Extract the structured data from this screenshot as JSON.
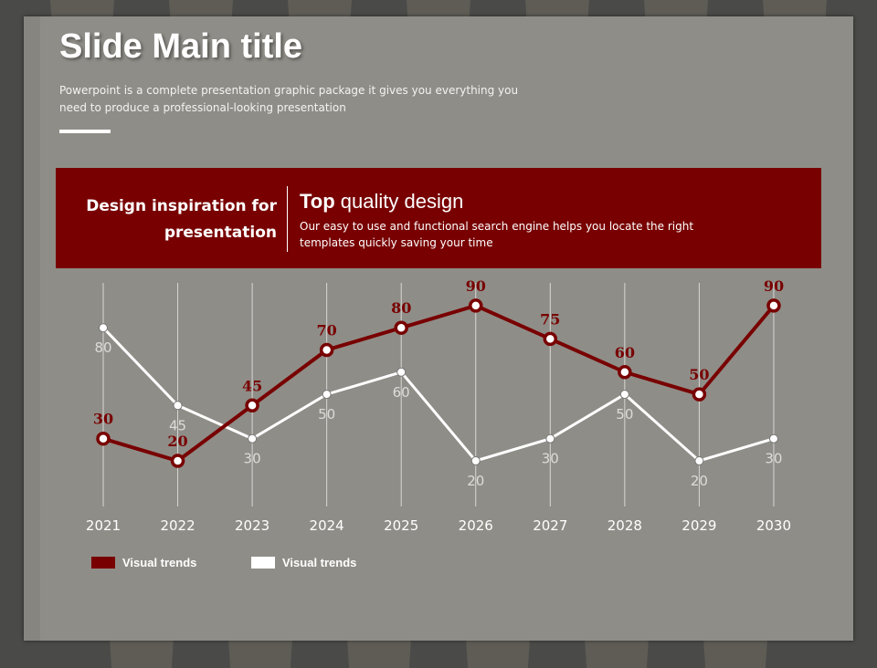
{
  "slide": {
    "title": "Slide Main title",
    "subtitle": "Powerpoint is a complete presentation graphic package it gives you everything you need to produce a professional-looking presentation"
  },
  "banner": {
    "left_text": "Design inspiration for presentation",
    "heading_bold": "Top",
    "heading_rest": " quality design",
    "body": "Our easy to use and functional search engine helps you locate the right templates quickly saving your time"
  },
  "chart_data": {
    "type": "line",
    "categories": [
      "2021",
      "2022",
      "2023",
      "2024",
      "2025",
      "2026",
      "2027",
      "2028",
      "2029",
      "2030"
    ],
    "series": [
      {
        "name": "Visual trends",
        "color": "#780000",
        "values": [
          30,
          20,
          45,
          70,
          80,
          90,
          75,
          60,
          50,
          90
        ]
      },
      {
        "name": "Visual trends",
        "color": "#ffffff",
        "values": [
          80,
          45,
          30,
          50,
          60,
          20,
          30,
          50,
          20,
          30
        ]
      }
    ],
    "ylim": [
      0,
      100
    ],
    "grid": "vertical",
    "legend": "bottom-left"
  }
}
